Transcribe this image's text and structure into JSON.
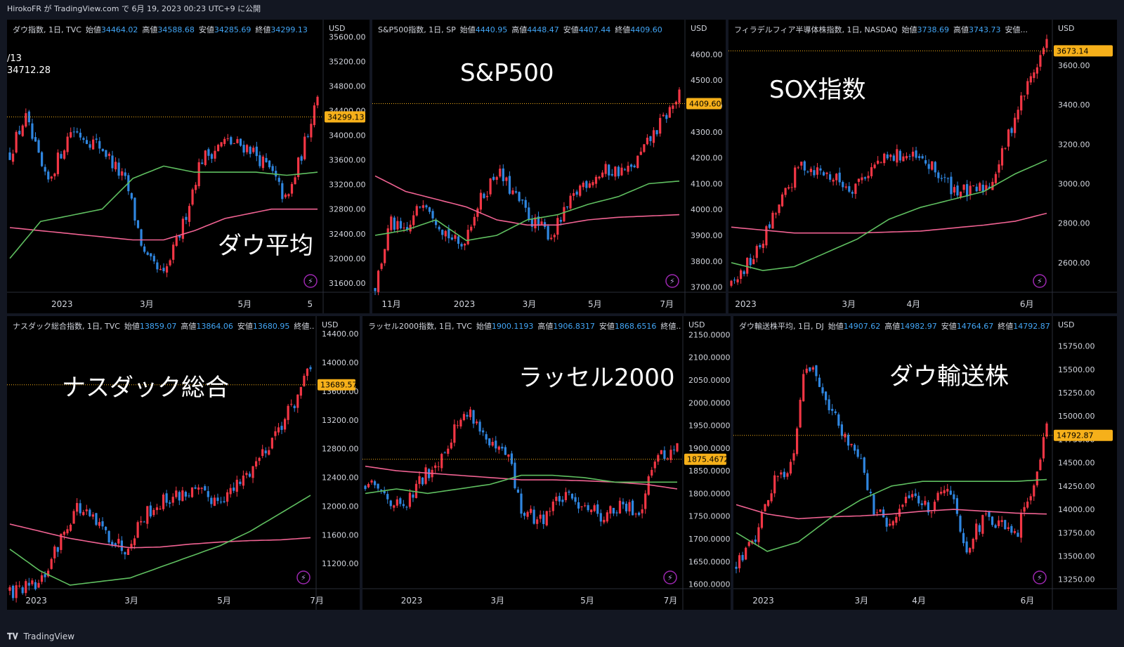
{
  "header": {
    "user": "HirokoFR",
    "text": "が TradingView.com で 6月 19, 2023 00:23 UTC+9 に公開"
  },
  "footer": {
    "brand": "TradingView",
    "logo": "tv-logo-icon"
  },
  "colors": {
    "up": "#f23645",
    "down": "#2f86e0",
    "ma_short": "#5fbf60",
    "ma_long": "#f06292",
    "price_label": "#f6b01a",
    "bg": "#000000"
  },
  "chart_data": [
    {
      "id": "dow",
      "type": "candlestick",
      "header": "ダウ指数, 1日, TVC",
      "ohlc": {
        "o": "34464.02",
        "h": "34588.68",
        "l": "34285.69",
        "c": "34299.13"
      },
      "ohlc_labels": [
        "始値",
        "高値",
        "安値",
        "終値"
      ],
      "big_label": "ダウ平均",
      "overlay_text": [
        "/13",
        "34712.28"
      ],
      "currency": "USD",
      "yticks": [
        "35600.00",
        "35200.00",
        "34800.00",
        "34400.00",
        "34000.00",
        "33600.00",
        "33200.00",
        "32800.00",
        "32400.00",
        "32000.00",
        "31600.00"
      ],
      "ylim": [
        31450,
        35650
      ],
      "xticks": [
        "2023",
        "3月",
        "5月",
        "5"
      ],
      "last_price": "34299.13",
      "last_value": 34299.13,
      "start": 33200,
      "path": [
        [
          0,
          33700
        ],
        [
          0.05,
          34300
        ],
        [
          0.12,
          33200
        ],
        [
          0.2,
          34100
        ],
        [
          0.3,
          33800
        ],
        [
          0.38,
          33200
        ],
        [
          0.44,
          32000
        ],
        [
          0.5,
          31700
        ],
        [
          0.56,
          32500
        ],
        [
          0.62,
          33600
        ],
        [
          0.7,
          33900
        ],
        [
          0.78,
          33800
        ],
        [
          0.85,
          33400
        ],
        [
          0.9,
          32900
        ],
        [
          0.96,
          33900
        ],
        [
          1,
          34700
        ]
      ],
      "ma_short": [
        [
          0,
          32000
        ],
        [
          0.1,
          32600
        ],
        [
          0.2,
          32700
        ],
        [
          0.3,
          32800
        ],
        [
          0.4,
          33300
        ],
        [
          0.5,
          33500
        ],
        [
          0.6,
          33400
        ],
        [
          0.7,
          33400
        ],
        [
          0.8,
          33400
        ],
        [
          0.9,
          33350
        ],
        [
          1,
          33400
        ]
      ],
      "ma_long": [
        [
          0,
          32500
        ],
        [
          0.2,
          32400
        ],
        [
          0.4,
          32300
        ],
        [
          0.5,
          32300
        ],
        [
          0.6,
          32450
        ],
        [
          0.7,
          32650
        ],
        [
          0.85,
          32800
        ],
        [
          1,
          32800
        ]
      ]
    },
    {
      "id": "sp500",
      "type": "candlestick",
      "header": "S&P500指数, 1日, SP",
      "ohlc": {
        "o": "4440.95",
        "h": "4448.47",
        "l": "4407.44",
        "c": "4409.60"
      },
      "ohlc_labels": [
        "始値",
        "高値",
        "安値",
        "終値"
      ],
      "big_label": "S&P500",
      "currency": "USD",
      "yticks": [
        "4600.00",
        "4500.00",
        "4400.00",
        "4300.00",
        "4200.00",
        "4100.00",
        "4000.00",
        "3900.00",
        "3800.00",
        "3700.00"
      ],
      "ylim": [
        3680,
        4680
      ],
      "xticks": [
        "11月",
        "2023",
        "3月",
        "5月",
        "7月"
      ],
      "last_price": "4409.60",
      "last_value": 4409.6,
      "start": 3700,
      "path": [
        [
          0,
          3700
        ],
        [
          0.05,
          3950
        ],
        [
          0.1,
          3900
        ],
        [
          0.16,
          4050
        ],
        [
          0.22,
          3930
        ],
        [
          0.28,
          3850
        ],
        [
          0.33,
          4000
        ],
        [
          0.4,
          4150
        ],
        [
          0.46,
          4050
        ],
        [
          0.52,
          3950
        ],
        [
          0.58,
          3900
        ],
        [
          0.62,
          3980
        ],
        [
          0.68,
          4100
        ],
        [
          0.76,
          4150
        ],
        [
          0.84,
          4150
        ],
        [
          0.92,
          4300
        ],
        [
          1,
          4440
        ]
      ],
      "ma_short": [
        [
          0,
          3900
        ],
        [
          0.1,
          3920
        ],
        [
          0.2,
          3960
        ],
        [
          0.3,
          3880
        ],
        [
          0.4,
          3900
        ],
        [
          0.5,
          3960
        ],
        [
          0.6,
          3980
        ],
        [
          0.7,
          4020
        ],
        [
          0.8,
          4050
        ],
        [
          0.9,
          4100
        ],
        [
          1,
          4110
        ]
      ],
      "ma_long": [
        [
          0,
          4130
        ],
        [
          0.1,
          4070
        ],
        [
          0.2,
          4040
        ],
        [
          0.3,
          4010
        ],
        [
          0.4,
          3960
        ],
        [
          0.5,
          3940
        ],
        [
          0.6,
          3940
        ],
        [
          0.7,
          3960
        ],
        [
          0.8,
          3970
        ],
        [
          0.9,
          3975
        ],
        [
          1,
          3980
        ]
      ]
    },
    {
      "id": "sox",
      "type": "candlestick",
      "header": "フィラデルフィア半導体株指数, 1日, NASDAQ",
      "ohlc": {
        "o": "3738.69",
        "h": "3743.73",
        "l": "安値..."
      },
      "ohlc_labels": [
        "始値",
        "高値",
        ""
      ],
      "big_label": "SOX指数",
      "currency": "USD",
      "yticks": [
        "3600.00",
        "3400.00",
        "3200.00",
        "3000.00",
        "2800.00",
        "2600.00"
      ],
      "ylim": [
        2450,
        3760
      ],
      "xticks": [
        "2023",
        "3月",
        "4月",
        "6月"
      ],
      "last_price": "3673.14",
      "last_value": 3673.14,
      "start": 2500,
      "path": [
        [
          0,
          2480
        ],
        [
          0.08,
          2650
        ],
        [
          0.14,
          2850
        ],
        [
          0.22,
          3100
        ],
        [
          0.3,
          3050
        ],
        [
          0.38,
          2980
        ],
        [
          0.46,
          3100
        ],
        [
          0.54,
          3150
        ],
        [
          0.62,
          3100
        ],
        [
          0.7,
          2980
        ],
        [
          0.76,
          2950
        ],
        [
          0.82,
          3000
        ],
        [
          0.86,
          3150
        ],
        [
          0.9,
          3350
        ],
        [
          0.94,
          3500
        ],
        [
          1,
          3720
        ]
      ],
      "ma_short": [
        [
          0,
          2600
        ],
        [
          0.1,
          2560
        ],
        [
          0.2,
          2580
        ],
        [
          0.3,
          2650
        ],
        [
          0.4,
          2720
        ],
        [
          0.5,
          2820
        ],
        [
          0.6,
          2880
        ],
        [
          0.7,
          2920
        ],
        [
          0.8,
          2960
        ],
        [
          0.9,
          3050
        ],
        [
          1,
          3120
        ]
      ],
      "ma_long": [
        [
          0,
          2780
        ],
        [
          0.2,
          2750
        ],
        [
          0.4,
          2750
        ],
        [
          0.6,
          2760
        ],
        [
          0.8,
          2790
        ],
        [
          0.9,
          2810
        ],
        [
          1,
          2850
        ]
      ]
    },
    {
      "id": "nasdaq",
      "type": "candlestick",
      "header": "ナスダック総合指数, 1日, TVC",
      "ohlc": {
        "o": "13859.07",
        "h": "13864.06",
        "l": "13680.95",
        "c": "終値..."
      },
      "ohlc_labels": [
        "始値",
        "高値",
        "安値",
        ""
      ],
      "big_label": "ナスダック総合",
      "currency": "USD",
      "yticks": [
        "14400.00",
        "14000.00",
        "13600.00",
        "13200.00",
        "12800.00",
        "12400.00",
        "12000.00",
        "11600.00",
        "11200.00"
      ],
      "ylim": [
        10850,
        14450
      ],
      "xticks": [
        "2023",
        "3月",
        "5月",
        "7月"
      ],
      "last_price": "13689.57",
      "last_value": 13689.57,
      "start": 10900,
      "path": [
        [
          0,
          10800
        ],
        [
          0.1,
          10900
        ],
        [
          0.22,
          12000
        ],
        [
          0.3,
          11700
        ],
        [
          0.38,
          11400
        ],
        [
          0.45,
          11900
        ],
        [
          0.52,
          12100
        ],
        [
          0.6,
          12200
        ],
        [
          0.68,
          12100
        ],
        [
          0.74,
          12200
        ],
        [
          0.8,
          12500
        ],
        [
          0.88,
          13000
        ],
        [
          0.94,
          13400
        ],
        [
          1,
          13900
        ]
      ],
      "ma_short": [
        [
          0,
          11400
        ],
        [
          0.1,
          11100
        ],
        [
          0.2,
          10900
        ],
        [
          0.3,
          10950
        ],
        [
          0.4,
          11000
        ],
        [
          0.5,
          11150
        ],
        [
          0.6,
          11300
        ],
        [
          0.7,
          11450
        ],
        [
          0.8,
          11650
        ],
        [
          0.9,
          11900
        ],
        [
          1,
          12150
        ]
      ],
      "ma_long": [
        [
          0,
          11750
        ],
        [
          0.1,
          11650
        ],
        [
          0.2,
          11550
        ],
        [
          0.3,
          11480
        ],
        [
          0.4,
          11420
        ],
        [
          0.5,
          11430
        ],
        [
          0.6,
          11470
        ],
        [
          0.7,
          11500
        ],
        [
          0.8,
          11520
        ],
        [
          0.9,
          11530
        ],
        [
          1,
          11560
        ]
      ]
    },
    {
      "id": "russell",
      "type": "candlestick",
      "header": "ラッセル2000指数, 1日, TVC",
      "ohlc": {
        "o": "1900.1193",
        "h": "1906.8317",
        "l": "1868.6516",
        "c": "終値..."
      },
      "ohlc_labels": [
        "始値",
        "高値",
        "安値",
        ""
      ],
      "big_label": "ラッセル2000",
      "currency": "USD",
      "yticks": [
        "2150.0000",
        "2100.0000",
        "2050.0000",
        "2000.0000",
        "1950.0000",
        "1900.0000",
        "1850.0000",
        "1800.0000",
        "1750.0000",
        "1700.0000",
        "1650.0000",
        "1600.0000"
      ],
      "ylim": [
        1590,
        2160
      ],
      "xticks": [
        "2023",
        "3月",
        "5月",
        "7月"
      ],
      "last_price": "1875.4672",
      "last_value": 1875.4672,
      "start": 1820,
      "path": [
        [
          0,
          1820
        ],
        [
          0.06,
          1800
        ],
        [
          0.12,
          1760
        ],
        [
          0.18,
          1830
        ],
        [
          0.24,
          1880
        ],
        [
          0.3,
          1960
        ],
        [
          0.34,
          1980
        ],
        [
          0.4,
          1900
        ],
        [
          0.46,
          1880
        ],
        [
          0.5,
          1760
        ],
        [
          0.56,
          1740
        ],
        [
          0.62,
          1790
        ],
        [
          0.7,
          1780
        ],
        [
          0.76,
          1750
        ],
        [
          0.82,
          1770
        ],
        [
          0.88,
          1760
        ],
        [
          0.92,
          1870
        ],
        [
          1,
          1900
        ]
      ],
      "ma_short": [
        [
          0,
          1800
        ],
        [
          0.1,
          1810
        ],
        [
          0.2,
          1800
        ],
        [
          0.3,
          1810
        ],
        [
          0.4,
          1820
        ],
        [
          0.5,
          1840
        ],
        [
          0.6,
          1840
        ],
        [
          0.7,
          1835
        ],
        [
          0.8,
          1825
        ],
        [
          0.9,
          1825
        ],
        [
          1,
          1825
        ]
      ],
      "ma_long": [
        [
          0,
          1860
        ],
        [
          0.1,
          1850
        ],
        [
          0.2,
          1845
        ],
        [
          0.3,
          1840
        ],
        [
          0.4,
          1835
        ],
        [
          0.5,
          1830
        ],
        [
          0.6,
          1830
        ],
        [
          0.7,
          1828
        ],
        [
          0.8,
          1825
        ],
        [
          0.9,
          1820
        ],
        [
          1,
          1810
        ]
      ]
    },
    {
      "id": "dowtrans",
      "type": "candlestick",
      "header": "ダウ輸送株平均, 1日, DJ",
      "ohlc": {
        "o": "14907.62",
        "h": "14982.97",
        "l": "14764.67",
        "c": "14792.87"
      },
      "ohlc_labels": [
        "始値",
        "高値",
        "安値",
        "終値"
      ],
      "big_label": "ダウ輸送株",
      "currency": "USD",
      "yticks": [
        "15750.00",
        "15500.00",
        "15250.00",
        "15000.00",
        "14750.00",
        "14500.00",
        "14250.00",
        "14000.00",
        "13750.00",
        "13500.00",
        "13250.00"
      ],
      "ylim": [
        13150,
        15920
      ],
      "xticks": [
        "2023",
        "3月",
        "4月",
        "6月"
      ],
      "last_price": "14792.87",
      "last_value": 14792.87,
      "start": 13400,
      "path": [
        [
          0,
          13400
        ],
        [
          0.06,
          13700
        ],
        [
          0.12,
          14300
        ],
        [
          0.18,
          14500
        ],
        [
          0.22,
          15600
        ],
        [
          0.28,
          15300
        ],
        [
          0.34,
          14800
        ],
        [
          0.4,
          14600
        ],
        [
          0.44,
          14000
        ],
        [
          0.5,
          13800
        ],
        [
          0.56,
          14200
        ],
        [
          0.62,
          14000
        ],
        [
          0.68,
          14300
        ],
        [
          0.74,
          13600
        ],
        [
          0.8,
          13900
        ],
        [
          0.86,
          13800
        ],
        [
          0.9,
          13700
        ],
        [
          0.95,
          14200
        ],
        [
          1,
          14900
        ]
      ],
      "ma_short": [
        [
          0,
          13750
        ],
        [
          0.1,
          13550
        ],
        [
          0.2,
          13650
        ],
        [
          0.3,
          13900
        ],
        [
          0.4,
          14100
        ],
        [
          0.5,
          14250
        ],
        [
          0.6,
          14300
        ],
        [
          0.7,
          14300
        ],
        [
          0.8,
          14300
        ],
        [
          0.9,
          14300
        ],
        [
          1,
          14320
        ]
      ],
      "ma_long": [
        [
          0,
          14050
        ],
        [
          0.1,
          13950
        ],
        [
          0.2,
          13900
        ],
        [
          0.3,
          13920
        ],
        [
          0.4,
          13930
        ],
        [
          0.5,
          13950
        ],
        [
          0.6,
          13980
        ],
        [
          0.7,
          14000
        ],
        [
          0.8,
          13980
        ],
        [
          0.9,
          13960
        ],
        [
          1,
          13950
        ]
      ]
    }
  ]
}
